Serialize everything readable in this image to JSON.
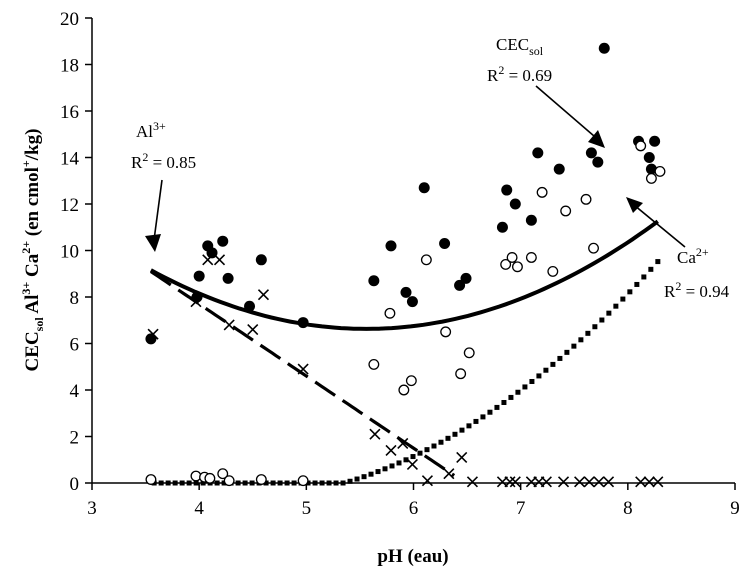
{
  "chart_data": {
    "type": "scatter",
    "xlabel": "pH (eau)",
    "ylabel_parts": {
      "cec": "CEC",
      "cec_sub": "sol",
      "al": "Al",
      "al_sup": "3+",
      "ca": "Ca",
      "ca_sup": "2+",
      "unit": " (en cmol",
      "unit_sup": "+",
      "unit_end": "/kg)"
    },
    "xlim": [
      3,
      9
    ],
    "ylim": [
      0,
      20
    ],
    "xticks": [
      "3",
      "4",
      "5",
      "6",
      "7",
      "8",
      "9"
    ],
    "yticks": [
      "0",
      "2",
      "4",
      "6",
      "8",
      "10",
      "12",
      "14",
      "16",
      "18",
      "20"
    ],
    "series": [
      {
        "name": "CEC sol",
        "marker": "filled-circle",
        "points": [
          [
            3.55,
            6.2
          ],
          [
            3.98,
            8.0
          ],
          [
            4.0,
            8.9
          ],
          [
            4.08,
            10.2
          ],
          [
            4.12,
            9.9
          ],
          [
            4.22,
            10.4
          ],
          [
            4.27,
            8.8
          ],
          [
            4.47,
            7.6
          ],
          [
            4.58,
            9.6
          ],
          [
            4.97,
            6.9
          ],
          [
            5.63,
            8.7
          ],
          [
            5.79,
            10.2
          ],
          [
            5.93,
            8.2
          ],
          [
            5.99,
            7.8
          ],
          [
            6.1,
            12.7
          ],
          [
            6.29,
            10.3
          ],
          [
            6.43,
            8.5
          ],
          [
            6.49,
            8.8
          ],
          [
            6.83,
            11.0
          ],
          [
            6.87,
            12.6
          ],
          [
            6.95,
            12.0
          ],
          [
            7.1,
            11.3
          ],
          [
            7.16,
            14.2
          ],
          [
            7.36,
            13.5
          ],
          [
            7.66,
            14.2
          ],
          [
            7.72,
            13.8
          ],
          [
            7.78,
            18.7
          ],
          [
            8.1,
            14.7
          ],
          [
            8.2,
            14.0
          ],
          [
            8.25,
            14.7
          ],
          [
            8.22,
            13.5
          ]
        ]
      },
      {
        "name": "Al3+",
        "marker": "cross",
        "points": [
          [
            3.57,
            6.4
          ],
          [
            3.97,
            7.8
          ],
          [
            4.08,
            9.6
          ],
          [
            4.19,
            9.6
          ],
          [
            4.28,
            6.8
          ],
          [
            4.5,
            6.6
          ],
          [
            4.6,
            8.1
          ],
          [
            4.97,
            4.9
          ],
          [
            5.64,
            2.1
          ],
          [
            5.79,
            1.4
          ],
          [
            5.9,
            1.7
          ],
          [
            5.99,
            0.8
          ],
          [
            6.13,
            0.1
          ],
          [
            6.33,
            0.4
          ],
          [
            6.45,
            1.1
          ],
          [
            6.55,
            0.05
          ],
          [
            6.83,
            0.05
          ],
          [
            6.9,
            0.05
          ],
          [
            6.95,
            0.05
          ],
          [
            7.1,
            0.05
          ],
          [
            7.17,
            0.05
          ],
          [
            7.24,
            0.05
          ],
          [
            7.4,
            0.05
          ],
          [
            7.55,
            0.05
          ],
          [
            7.64,
            0.05
          ],
          [
            7.73,
            0.05
          ],
          [
            7.82,
            0.05
          ],
          [
            8.12,
            0.05
          ],
          [
            8.2,
            0.05
          ],
          [
            8.28,
            0.05
          ]
        ]
      },
      {
        "name": "Ca2+",
        "marker": "open-circle",
        "points": [
          [
            3.55,
            0.15
          ],
          [
            3.97,
            0.3
          ],
          [
            4.05,
            0.25
          ],
          [
            4.1,
            0.2
          ],
          [
            4.22,
            0.4
          ],
          [
            4.28,
            0.1
          ],
          [
            4.58,
            0.15
          ],
          [
            4.97,
            0.1
          ],
          [
            5.63,
            5.1
          ],
          [
            5.78,
            7.3
          ],
          [
            5.91,
            4.0
          ],
          [
            5.98,
            4.4
          ],
          [
            6.12,
            9.6
          ],
          [
            6.3,
            6.5
          ],
          [
            6.44,
            4.7
          ],
          [
            6.52,
            5.6
          ],
          [
            6.86,
            9.4
          ],
          [
            6.92,
            9.7
          ],
          [
            6.97,
            9.3
          ],
          [
            7.1,
            9.7
          ],
          [
            7.2,
            12.5
          ],
          [
            7.3,
            9.1
          ],
          [
            7.42,
            11.7
          ],
          [
            7.61,
            12.2
          ],
          [
            7.68,
            10.1
          ],
          [
            8.12,
            14.5
          ],
          [
            8.22,
            13.1
          ],
          [
            8.3,
            13.4
          ]
        ]
      }
    ],
    "fits": [
      {
        "name": "CEC sol",
        "style": "solid-thick",
        "domain": [
          3.55,
          8.28
        ],
        "coef": [
          25.95,
          -6.95,
          0.625
        ]
      },
      {
        "name": "Al3+",
        "style": "dashed",
        "domain": [
          3.55,
          6.38
        ],
        "coef": [
          20.1,
          -3.1
        ]
      },
      {
        "name": "Ca2+",
        "style": "dotted-squares",
        "domain": [
          3.58,
          8.28
        ],
        "coef": [
          11.3,
          -5.58,
          0.648
        ]
      }
    ],
    "annotations": {
      "al": {
        "name": "Al",
        "sup": "3+",
        "r2": "R",
        "r2_sup": "2",
        "r2_val": " = 0.85"
      },
      "cec": {
        "name": "CEC",
        "sub": "sol",
        "r2": "R",
        "r2_sup": "2",
        "r2_val": " = 0.69"
      },
      "ca": {
        "name": "Ca",
        "sup": "2+",
        "r2": "R",
        "r2_sup": "2",
        "r2_val": " = 0.94"
      }
    }
  }
}
